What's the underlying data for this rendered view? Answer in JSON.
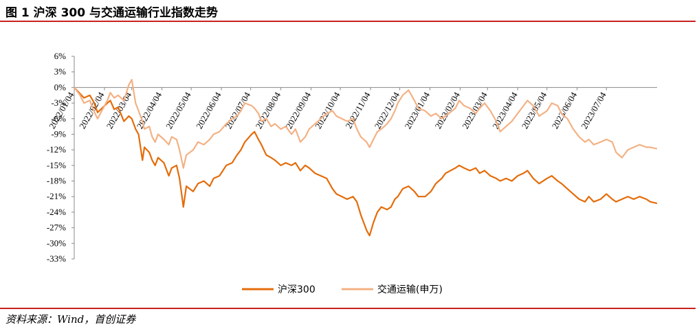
{
  "title": "图 1 沪深 300 与交通运输行业指数走势",
  "source": "资料来源：Wind，首创证券",
  "colors": {
    "accent_rule": "#c8201f",
    "series_hs300": "#e46c0a",
    "series_transport": "#f4b183"
  },
  "chart_data": {
    "type": "line",
    "title": "",
    "xlabel": "",
    "ylabel": "",
    "ylim": [
      -33,
      6
    ],
    "yticks": [
      "6%",
      "3%",
      "0%",
      "-3%",
      "-6%",
      "-9%",
      "-12%",
      "-15%",
      "-18%",
      "-21%",
      "-24%",
      "-27%",
      "-30%",
      "-33%"
    ],
    "ytick_values": [
      6,
      3,
      0,
      -3,
      -6,
      -9,
      -12,
      -15,
      -18,
      -21,
      -24,
      -27,
      -30,
      -33
    ],
    "xlim": [
      "2022-01-04",
      "2023-08-25"
    ],
    "xticks": [
      "2022/01/04",
      "2022/02/04",
      "2022/03/04",
      "2022/04/04",
      "2022/05/04",
      "2022/06/04",
      "2022/07/04",
      "2022/08/04",
      "2022/09/04",
      "2022/10/04",
      "2022/11/04",
      "2022/12/04",
      "2023/01/04",
      "2023/02/04",
      "2023/03/04",
      "2023/04/04",
      "2023/05/04",
      "2023/06/04",
      "2023/07/04"
    ],
    "xtick_dates": [
      "2022-01-04",
      "2022-02-04",
      "2022-03-04",
      "2022-04-04",
      "2022-05-04",
      "2022-06-04",
      "2022-07-04",
      "2022-08-04",
      "2022-09-04",
      "2022-10-04",
      "2022-11-04",
      "2022-12-04",
      "2023-01-04",
      "2023-02-04",
      "2023-03-04",
      "2023-04-04",
      "2023-05-04",
      "2023-06-04",
      "2023-07-04"
    ],
    "legend_position": "bottom-center",
    "grid": false,
    "series": [
      {
        "name": "沪深300",
        "points": [
          [
            "2022-01-04",
            0
          ],
          [
            "2022-01-10",
            -1.2
          ],
          [
            "2022-01-14",
            -2.0
          ],
          [
            "2022-01-20",
            -1.5
          ],
          [
            "2022-01-24",
            -2.8
          ],
          [
            "2022-01-28",
            -4.8
          ],
          [
            "2022-02-07",
            -3.0
          ],
          [
            "2022-02-10",
            -2.5
          ],
          [
            "2022-02-14",
            -4.2
          ],
          [
            "2022-02-18",
            -3.8
          ],
          [
            "2022-02-24",
            -6.5
          ],
          [
            "2022-03-01",
            -5.5
          ],
          [
            "2022-03-04",
            -6.0
          ],
          [
            "2022-03-08",
            -8.0
          ],
          [
            "2022-03-11",
            -9.0
          ],
          [
            "2022-03-15",
            -14.0
          ],
          [
            "2022-03-17",
            -11.5
          ],
          [
            "2022-03-22",
            -12.5
          ],
          [
            "2022-03-25",
            -14.0
          ],
          [
            "2022-03-28",
            -15.0
          ],
          [
            "2022-03-31",
            -13.5
          ],
          [
            "2022-04-06",
            -14.5
          ],
          [
            "2022-04-11",
            -17.0
          ],
          [
            "2022-04-14",
            -15.5
          ],
          [
            "2022-04-19",
            -15.0
          ],
          [
            "2022-04-22",
            -17.5
          ],
          [
            "2022-04-26",
            -23.0
          ],
          [
            "2022-04-29",
            -19.0
          ],
          [
            "2022-05-06",
            -20.0
          ],
          [
            "2022-05-11",
            -18.5
          ],
          [
            "2022-05-17",
            -18.0
          ],
          [
            "2022-05-23",
            -19.0
          ],
          [
            "2022-05-27",
            -17.5
          ],
          [
            "2022-06-02",
            -17.0
          ],
          [
            "2022-06-09",
            -15.0
          ],
          [
            "2022-06-15",
            -14.5
          ],
          [
            "2022-06-20",
            -13.0
          ],
          [
            "2022-06-24",
            -12.0
          ],
          [
            "2022-06-28",
            -10.5
          ],
          [
            "2022-07-05",
            -9.0
          ],
          [
            "2022-07-08",
            -8.5
          ],
          [
            "2022-07-12",
            -10.0
          ],
          [
            "2022-07-15",
            -11.0
          ],
          [
            "2022-07-20",
            -13.0
          ],
          [
            "2022-07-25",
            -13.5
          ],
          [
            "2022-07-29",
            -14.0
          ],
          [
            "2022-08-04",
            -15.0
          ],
          [
            "2022-08-09",
            -14.5
          ],
          [
            "2022-08-15",
            -15.0
          ],
          [
            "2022-08-19",
            -14.5
          ],
          [
            "2022-08-24",
            -16.0
          ],
          [
            "2022-08-29",
            -15.0
          ],
          [
            "2022-09-02",
            -15.5
          ],
          [
            "2022-09-08",
            -16.5
          ],
          [
            "2022-09-14",
            -17.0
          ],
          [
            "2022-09-20",
            -17.5
          ],
          [
            "2022-09-26",
            -19.5
          ],
          [
            "2022-09-30",
            -20.5
          ],
          [
            "2022-10-11",
            -21.5
          ],
          [
            "2022-10-17",
            -21.0
          ],
          [
            "2022-10-21",
            -22.0
          ],
          [
            "2022-10-25",
            -24.5
          ],
          [
            "2022-10-31",
            -27.5
          ],
          [
            "2022-11-03",
            -28.5
          ],
          [
            "2022-11-07",
            -26.0
          ],
          [
            "2022-11-11",
            -24.0
          ],
          [
            "2022-11-15",
            -23.0
          ],
          [
            "2022-11-21",
            -23.5
          ],
          [
            "2022-11-25",
            -23.0
          ],
          [
            "2022-11-29",
            -21.5
          ],
          [
            "2022-12-02",
            -21.0
          ],
          [
            "2022-12-07",
            -19.5
          ],
          [
            "2022-12-13",
            -19.0
          ],
          [
            "2022-12-19",
            -20.0
          ],
          [
            "2022-12-23",
            -21.0
          ],
          [
            "2022-12-30",
            -21.0
          ],
          [
            "2023-01-05",
            -20.0
          ],
          [
            "2023-01-10",
            -18.5
          ],
          [
            "2023-01-16",
            -17.5
          ],
          [
            "2023-01-20",
            -16.5
          ],
          [
            "2023-01-30",
            -15.5
          ],
          [
            "2023-02-03",
            -15.0
          ],
          [
            "2023-02-08",
            -15.5
          ],
          [
            "2023-02-14",
            -16.0
          ],
          [
            "2023-02-20",
            -15.5
          ],
          [
            "2023-02-24",
            -16.5
          ],
          [
            "2023-03-01",
            -16.0
          ],
          [
            "2023-03-07",
            -17.0
          ],
          [
            "2023-03-13",
            -17.5
          ],
          [
            "2023-03-17",
            -18.0
          ],
          [
            "2023-03-23",
            -17.5
          ],
          [
            "2023-03-29",
            -18.0
          ],
          [
            "2023-04-04",
            -17.0
          ],
          [
            "2023-04-10",
            -16.5
          ],
          [
            "2023-04-14",
            -16.0
          ],
          [
            "2023-04-20",
            -17.5
          ],
          [
            "2023-04-26",
            -18.5
          ],
          [
            "2023-05-04",
            -17.5
          ],
          [
            "2023-05-09",
            -17.0
          ],
          [
            "2023-05-15",
            -18.0
          ],
          [
            "2023-05-19",
            -18.5
          ],
          [
            "2023-05-25",
            -19.5
          ],
          [
            "2023-05-31",
            -20.5
          ],
          [
            "2023-06-06",
            -21.5
          ],
          [
            "2023-06-12",
            -22.0
          ],
          [
            "2023-06-16",
            -21.0
          ],
          [
            "2023-06-21",
            -22.0
          ],
          [
            "2023-06-28",
            -21.5
          ],
          [
            "2023-07-04",
            -20.5
          ],
          [
            "2023-07-10",
            -21.5
          ],
          [
            "2023-07-14",
            -22.0
          ],
          [
            "2023-07-20",
            -21.5
          ],
          [
            "2023-07-26",
            -21.0
          ],
          [
            "2023-08-01",
            -21.5
          ],
          [
            "2023-08-07",
            -21.0
          ],
          [
            "2023-08-14",
            -21.5
          ],
          [
            "2023-08-18",
            -22.0
          ],
          [
            "2023-08-25",
            -22.3
          ]
        ]
      },
      {
        "name": "交通运输(申万)",
        "points": [
          [
            "2022-01-04",
            0
          ],
          [
            "2022-01-10",
            -1.5
          ],
          [
            "2022-01-14",
            -3.0
          ],
          [
            "2022-01-20",
            -2.5
          ],
          [
            "2022-01-24",
            -4.5
          ],
          [
            "2022-01-28",
            -6.0
          ],
          [
            "2022-02-07",
            -2.5
          ],
          [
            "2022-02-10",
            -1.0
          ],
          [
            "2022-02-14",
            -2.0
          ],
          [
            "2022-02-18",
            -1.5
          ],
          [
            "2022-02-24",
            -2.5
          ],
          [
            "2022-03-01",
            0.5
          ],
          [
            "2022-03-04",
            1.5
          ],
          [
            "2022-03-08",
            -3.0
          ],
          [
            "2022-03-11",
            -4.5
          ],
          [
            "2022-03-15",
            -6.5
          ],
          [
            "2022-03-17",
            -8.0
          ],
          [
            "2022-03-22",
            -7.5
          ],
          [
            "2022-03-25",
            -9.5
          ],
          [
            "2022-03-28",
            -10.5
          ],
          [
            "2022-03-31",
            -9.0
          ],
          [
            "2022-04-06",
            -10.0
          ],
          [
            "2022-04-11",
            -11.0
          ],
          [
            "2022-04-14",
            -9.5
          ],
          [
            "2022-04-19",
            -10.0
          ],
          [
            "2022-04-22",
            -12.0
          ],
          [
            "2022-04-26",
            -15.5
          ],
          [
            "2022-04-29",
            -13.0
          ],
          [
            "2022-05-06",
            -12.0
          ],
          [
            "2022-05-11",
            -10.5
          ],
          [
            "2022-05-17",
            -11.0
          ],
          [
            "2022-05-23",
            -10.0
          ],
          [
            "2022-05-27",
            -9.0
          ],
          [
            "2022-06-02",
            -8.5
          ],
          [
            "2022-06-09",
            -7.0
          ],
          [
            "2022-06-15",
            -6.0
          ],
          [
            "2022-06-20",
            -5.5
          ],
          [
            "2022-06-24",
            -4.5
          ],
          [
            "2022-06-28",
            -3.0
          ],
          [
            "2022-07-05",
            -3.5
          ],
          [
            "2022-07-08",
            -4.0
          ],
          [
            "2022-07-12",
            -5.0
          ],
          [
            "2022-07-15",
            -6.5
          ],
          [
            "2022-07-20",
            -6.0
          ],
          [
            "2022-07-25",
            -7.5
          ],
          [
            "2022-07-29",
            -7.0
          ],
          [
            "2022-08-04",
            -8.0
          ],
          [
            "2022-08-09",
            -7.5
          ],
          [
            "2022-08-15",
            -9.0
          ],
          [
            "2022-08-19",
            -8.0
          ],
          [
            "2022-08-24",
            -10.5
          ],
          [
            "2022-08-29",
            -9.5
          ],
          [
            "2022-09-02",
            -8.0
          ],
          [
            "2022-09-08",
            -7.0
          ],
          [
            "2022-09-14",
            -6.0
          ],
          [
            "2022-09-20",
            -5.0
          ],
          [
            "2022-09-26",
            -4.5
          ],
          [
            "2022-09-30",
            -5.5
          ],
          [
            "2022-10-11",
            -6.5
          ],
          [
            "2022-10-17",
            -6.0
          ],
          [
            "2022-10-21",
            -8.0
          ],
          [
            "2022-10-25",
            -9.5
          ],
          [
            "2022-10-31",
            -10.5
          ],
          [
            "2022-11-03",
            -11.5
          ],
          [
            "2022-11-07",
            -10.0
          ],
          [
            "2022-11-11",
            -8.5
          ],
          [
            "2022-11-15",
            -8.0
          ],
          [
            "2022-11-21",
            -7.0
          ],
          [
            "2022-11-25",
            -6.0
          ],
          [
            "2022-11-29",
            -4.5
          ],
          [
            "2022-12-02",
            -3.0
          ],
          [
            "2022-12-07",
            -1.5
          ],
          [
            "2022-12-13",
            -0.5
          ],
          [
            "2022-12-19",
            -2.5
          ],
          [
            "2022-12-23",
            -4.0
          ],
          [
            "2022-12-30",
            -4.5
          ],
          [
            "2023-01-05",
            -5.5
          ],
          [
            "2023-01-10",
            -5.0
          ],
          [
            "2023-01-16",
            -6.0
          ],
          [
            "2023-01-20",
            -5.5
          ],
          [
            "2023-01-30",
            -4.0
          ],
          [
            "2023-02-03",
            -2.5
          ],
          [
            "2023-02-08",
            -3.5
          ],
          [
            "2023-02-14",
            -4.0
          ],
          [
            "2023-02-20",
            -5.0
          ],
          [
            "2023-02-24",
            -4.0
          ],
          [
            "2023-03-01",
            -3.0
          ],
          [
            "2023-03-07",
            -4.5
          ],
          [
            "2023-03-13",
            -6.5
          ],
          [
            "2023-03-17",
            -8.5
          ],
          [
            "2023-03-23",
            -7.5
          ],
          [
            "2023-03-29",
            -6.5
          ],
          [
            "2023-04-04",
            -5.0
          ],
          [
            "2023-04-10",
            -3.5
          ],
          [
            "2023-04-14",
            -2.5
          ],
          [
            "2023-04-20",
            -3.5
          ],
          [
            "2023-04-26",
            -5.5
          ],
          [
            "2023-05-04",
            -4.5
          ],
          [
            "2023-05-09",
            -3.0
          ],
          [
            "2023-05-15",
            -3.5
          ],
          [
            "2023-05-19",
            -5.0
          ],
          [
            "2023-05-25",
            -6.0
          ],
          [
            "2023-05-31",
            -8.0
          ],
          [
            "2023-06-06",
            -9.5
          ],
          [
            "2023-06-12",
            -10.5
          ],
          [
            "2023-06-16",
            -10.0
          ],
          [
            "2023-06-21",
            -11.0
          ],
          [
            "2023-06-28",
            -10.5
          ],
          [
            "2023-07-04",
            -10.0
          ],
          [
            "2023-07-10",
            -10.5
          ],
          [
            "2023-07-14",
            -12.5
          ],
          [
            "2023-07-20",
            -13.5
          ],
          [
            "2023-07-26",
            -12.0
          ],
          [
            "2023-08-01",
            -11.5
          ],
          [
            "2023-08-07",
            -11.0
          ],
          [
            "2023-08-14",
            -11.5
          ],
          [
            "2023-08-18",
            -11.5
          ],
          [
            "2023-08-25",
            -11.8
          ]
        ]
      }
    ]
  }
}
